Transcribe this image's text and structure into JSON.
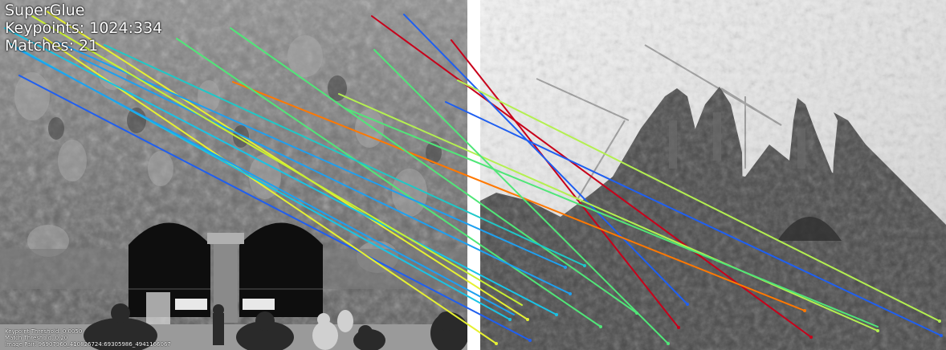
{
  "header": {
    "method": "SuperGlue",
    "keypoints": "Keypoints: 1024:334",
    "matches": "Matches: 21"
  },
  "footer": {
    "keypoint_threshold": "Keypoint Threshold: 0.0050",
    "match_threshold": "Match Threshold: 0.20",
    "image_pair": "Image Pair: 96907960_410826724:69305986_4941166067"
  },
  "colors": {
    "red": "#c8001a",
    "blue": "#1f5ff0",
    "cyan": "#19c3e6",
    "teal": "#1ec8c8",
    "light_blue": "#1ea0f0",
    "green": "#50e678",
    "lime": "#b4f050",
    "yellow": "#e6f032",
    "orange": "#ff7800"
  },
  "images": {
    "left": "left-photo-facade",
    "right": "right-photo-spires"
  }
}
